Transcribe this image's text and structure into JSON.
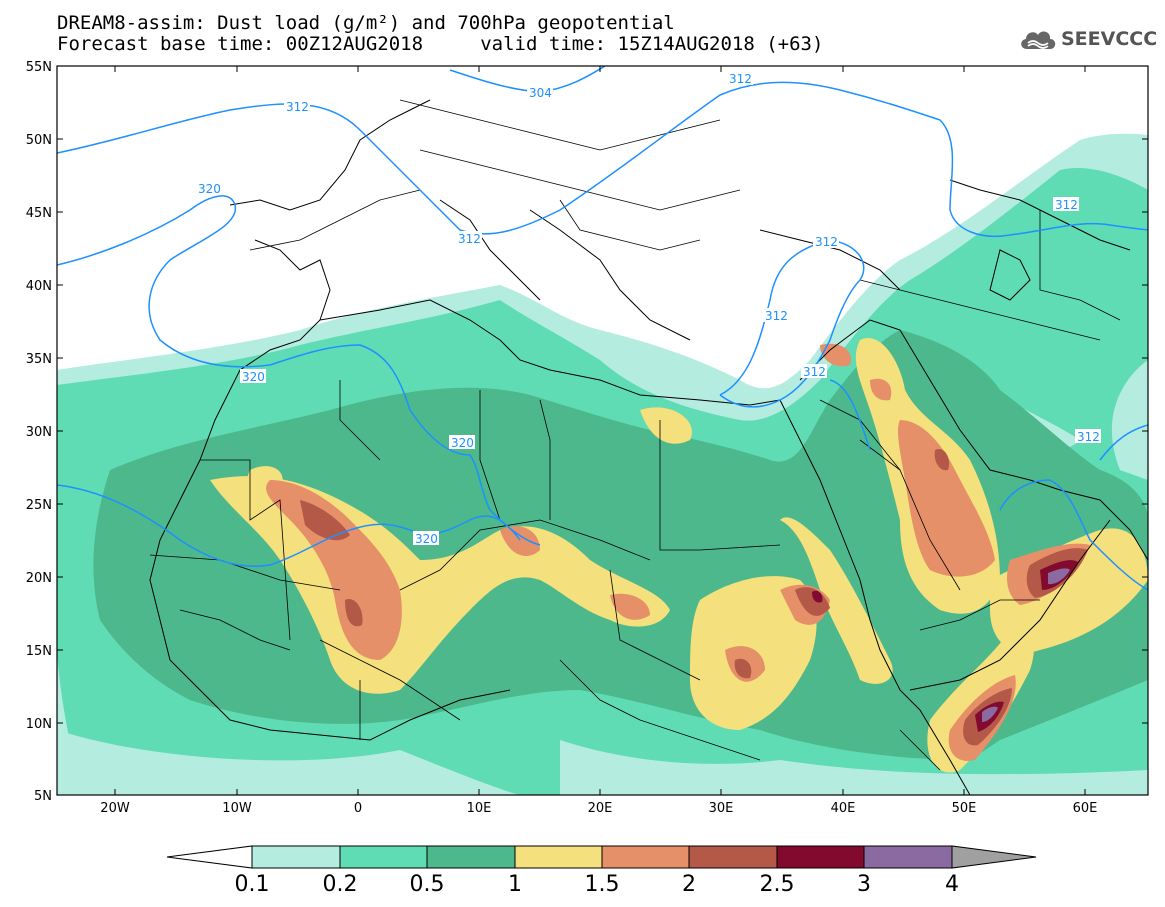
{
  "title": {
    "line1": "DREAM8-assim: Dust load (g/m²) and 700hPa geopotential",
    "line2": "Forecast base time: 00Z12AUG2018     valid time: 15Z14AUG2018 (+63)"
  },
  "logo": {
    "text": "SEEVCCC",
    "icon": "cloud-icon"
  },
  "axes": {
    "lat_labels": [
      "55N",
      "50N",
      "45N",
      "40N",
      "35N",
      "30N",
      "25N",
      "20N",
      "15N",
      "10N",
      "5N"
    ],
    "lon_labels": [
      "20W",
      "10W",
      "0",
      "10E",
      "20E",
      "30E",
      "40E",
      "50E",
      "60E"
    ]
  },
  "contours": {
    "labels": [
      "304",
      "312",
      "312",
      "312",
      "312",
      "312",
      "312",
      "312",
      "312",
      "320",
      "320",
      "320",
      "320"
    ]
  },
  "colorbar": {
    "labels": [
      "0.1",
      "0.2",
      "0.5",
      "1",
      "1.5",
      "2",
      "2.5",
      "3",
      "4"
    ],
    "colors": [
      "#ffffff",
      "#b4ece0",
      "#5fdcb4",
      "#4cb88c",
      "#f4e07c",
      "#e6906a",
      "#b45848",
      "#820a2e",
      "#8a6aa0",
      "#a0a0a0"
    ]
  }
}
